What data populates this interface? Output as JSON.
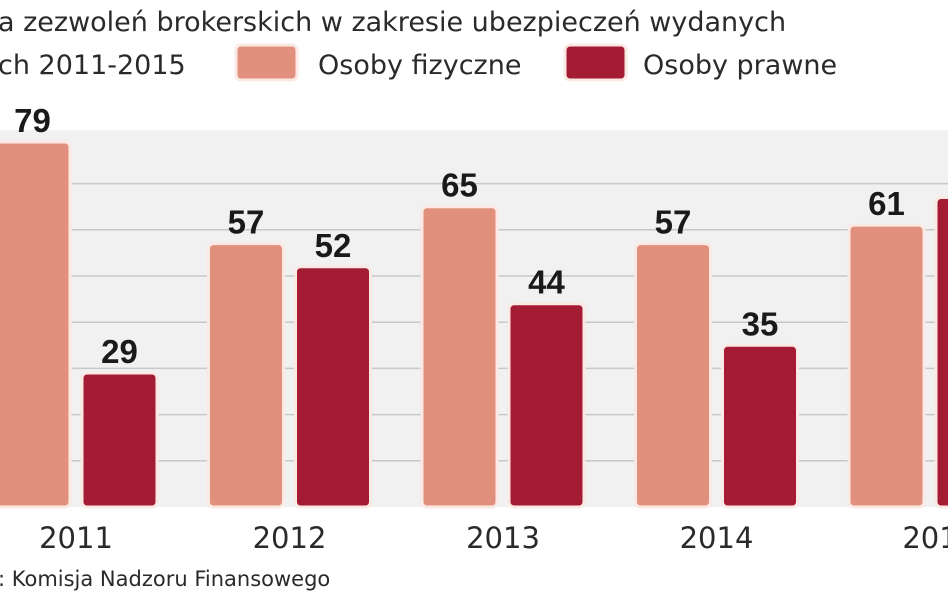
{
  "chart_data": {
    "type": "bar",
    "title_line1": "a zezwoleń brokerskich w zakresie ubezpieczeń wydanych",
    "title_line2": "ch 2011-2015",
    "source": ": Komisja Nadzoru Finansowego",
    "categories": [
      "2011",
      "2012",
      "2013",
      "2014",
      "201"
    ],
    "series": [
      {
        "name": "Osoby fizyczne",
        "color": "#e0907c",
        "values": [
          79,
          57,
          65,
          57,
          61
        ],
        "labels": [
          "79",
          "57",
          "65",
          "57",
          "61"
        ]
      },
      {
        "name": "Osoby prawne",
        "color": "#a31c34",
        "values": [
          29,
          52,
          44,
          35,
          67
        ],
        "labels": [
          "29",
          "52",
          "44",
          "35",
          ""
        ]
      }
    ],
    "ylim": [
      0,
      80
    ],
    "grid": true,
    "grid_step": 10,
    "legend_placement": "top",
    "plot_background": "#f1f1f1"
  }
}
